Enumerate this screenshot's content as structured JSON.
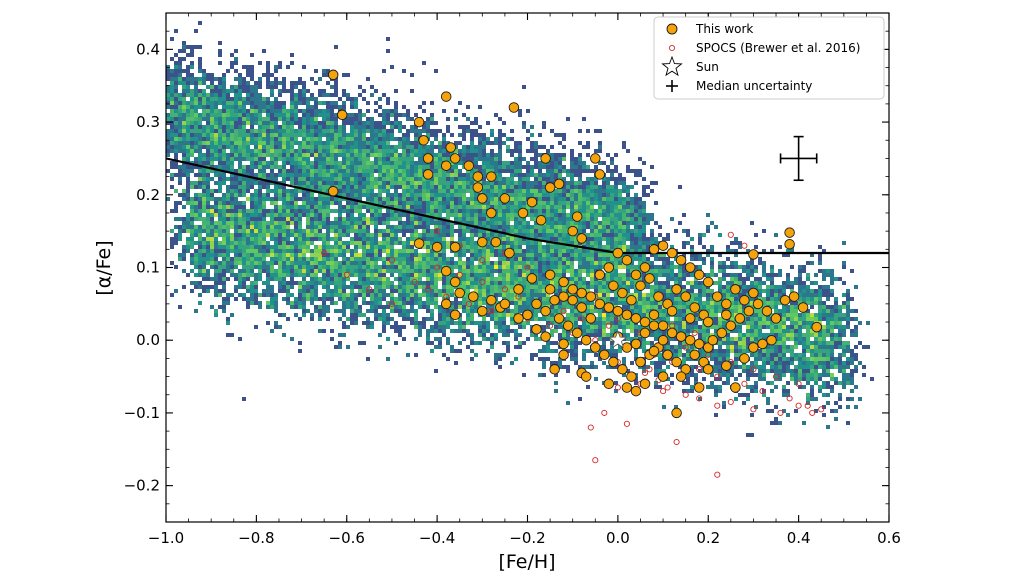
{
  "chart_data": {
    "type": "scatter",
    "xlabel": "[Fe/H]",
    "ylabel": "[α/Fe]",
    "xlim": [
      -1.0,
      0.6
    ],
    "ylim": [
      -0.25,
      0.45
    ],
    "xticks": [
      -1.0,
      -0.8,
      -0.6,
      -0.4,
      -0.2,
      0.0,
      0.2,
      0.4,
      0.6
    ],
    "xtick_labels": [
      "−1.0",
      "−0.8",
      "−0.6",
      "−0.4",
      "−0.2",
      "0.0",
      "0.2",
      "0.4",
      "0.6"
    ],
    "yticks": [
      -0.2,
      -0.1,
      0.0,
      0.1,
      0.2,
      0.3,
      0.4
    ],
    "ytick_labels": [
      "−0.2",
      "−0.1",
      "0.0",
      "0.1",
      "0.2",
      "0.3",
      "0.4"
    ],
    "grid": false,
    "legend_position": "top-right",
    "legend": [
      {
        "label": "This work",
        "marker": "orange-circle"
      },
      {
        "label": "SPOCS (Brewer et al. 2016)",
        "marker": "red-open-circle"
      },
      {
        "label": "Sun",
        "marker": "star"
      },
      {
        "label": "Median uncertainty",
        "marker": "errorbar"
      }
    ],
    "colors": {
      "this_work_fill": "#f5a30a",
      "this_work_edge": "#1a1a1a",
      "spocs_edge": "#d62728",
      "density_low": "#440154",
      "density_mid": "#21918c",
      "density_high": "#fde725"
    },
    "dividing_line": {
      "points": [
        [
          -1.0,
          0.25
        ],
        [
          -0.2,
          0.14
        ],
        [
          0.0,
          0.12
        ],
        [
          0.6,
          0.12
        ]
      ]
    },
    "sun": {
      "x": 0.0,
      "y": 0.0
    },
    "median_uncertainty": {
      "x": 0.4,
      "y": 0.25,
      "xerr": 0.04,
      "yerr": 0.03
    },
    "density_background": {
      "description_shape": "two sequences",
      "high_alpha_sequence": {
        "x_range": [
          -1.0,
          0.05
        ],
        "y_at_xmin": 0.31,
        "y_at_xmax": 0.15
      },
      "low_alpha_sequence": {
        "x_range": [
          -0.95,
          0.5
        ],
        "y_at_xmin": 0.15,
        "y_at_xmax": 0.0
      }
    },
    "series": [
      {
        "name": "This work",
        "points": [
          [
            -0.63,
            0.365
          ],
          [
            -0.61,
            0.31
          ],
          [
            -0.63,
            0.205
          ],
          [
            -0.38,
            0.335
          ],
          [
            -0.23,
            0.32
          ],
          [
            -0.44,
            0.3
          ],
          [
            -0.43,
            0.275
          ],
          [
            -0.42,
            0.25
          ],
          [
            -0.42,
            0.228
          ],
          [
            -0.37,
            0.265
          ],
          [
            -0.36,
            0.25
          ],
          [
            -0.38,
            0.24
          ],
          [
            -0.33,
            0.24
          ],
          [
            -0.31,
            0.225
          ],
          [
            -0.28,
            0.225
          ],
          [
            -0.31,
            0.21
          ],
          [
            -0.3,
            0.195
          ],
          [
            -0.25,
            0.195
          ],
          [
            -0.21,
            0.175
          ],
          [
            -0.28,
            0.175
          ],
          [
            -0.16,
            0.25
          ],
          [
            -0.15,
            0.21
          ],
          [
            -0.13,
            0.215
          ],
          [
            -0.05,
            0.25
          ],
          [
            -0.04,
            0.228
          ],
          [
            -0.19,
            0.19
          ],
          [
            -0.17,
            0.165
          ],
          [
            -0.09,
            0.17
          ],
          [
            -0.1,
            0.15
          ],
          [
            -0.08,
            0.14
          ],
          [
            -0.44,
            0.133
          ],
          [
            -0.4,
            0.128
          ],
          [
            -0.36,
            0.128
          ],
          [
            -0.3,
            0.135
          ],
          [
            -0.27,
            0.135
          ],
          [
            -0.24,
            0.12
          ],
          [
            -0.38,
            0.095
          ],
          [
            -0.36,
            0.08
          ],
          [
            -0.35,
            0.065
          ],
          [
            -0.32,
            0.06
          ],
          [
            -0.38,
            0.05
          ],
          [
            -0.36,
            0.035
          ],
          [
            -0.3,
            0.04
          ],
          [
            -0.28,
            0.055
          ],
          [
            -0.26,
            0.045
          ],
          [
            -0.22,
            0.07
          ],
          [
            -0.19,
            0.085
          ],
          [
            -0.15,
            0.09
          ],
          [
            -0.12,
            0.08
          ],
          [
            -0.1,
            0.07
          ],
          [
            -0.08,
            0.065
          ],
          [
            -0.06,
            0.06
          ],
          [
            -0.04,
            0.05
          ],
          [
            -0.02,
            0.045
          ],
          [
            0.0,
            0.04
          ],
          [
            0.02,
            0.035
          ],
          [
            0.04,
            0.03
          ],
          [
            0.06,
            0.025
          ],
          [
            0.08,
            0.02
          ],
          [
            0.1,
            0.02
          ],
          [
            0.12,
            0.01
          ],
          [
            0.14,
            0.005
          ],
          [
            0.16,
            0.0
          ],
          [
            0.18,
            -0.005
          ],
          [
            0.2,
            -0.01
          ],
          [
            -0.16,
            0.04
          ],
          [
            -0.13,
            0.03
          ],
          [
            -0.11,
            0.02
          ],
          [
            -0.09,
            0.01
          ],
          [
            -0.07,
            0.0
          ],
          [
            -0.05,
            -0.01
          ],
          [
            -0.03,
            -0.02
          ],
          [
            -0.01,
            -0.03
          ],
          [
            0.01,
            -0.04
          ],
          [
            0.03,
            -0.05
          ],
          [
            0.05,
            -0.03
          ],
          [
            0.07,
            -0.02
          ],
          [
            0.09,
            -0.01
          ],
          [
            0.11,
            -0.02
          ],
          [
            0.13,
            -0.03
          ],
          [
            0.15,
            -0.04
          ],
          [
            0.17,
            -0.02
          ],
          [
            0.19,
            -0.03
          ],
          [
            0.21,
            0.0
          ],
          [
            0.23,
            0.01
          ],
          [
            0.25,
            0.02
          ],
          [
            0.27,
            0.03
          ],
          [
            0.29,
            0.04
          ],
          [
            0.31,
            0.05
          ],
          [
            0.33,
            0.04
          ],
          [
            0.35,
            0.03
          ],
          [
            0.37,
            0.055
          ],
          [
            0.39,
            0.06
          ],
          [
            0.41,
            0.045
          ],
          [
            0.44,
            0.018
          ],
          [
            0.22,
            0.06
          ],
          [
            0.24,
            0.05
          ],
          [
            0.26,
            0.07
          ],
          [
            0.28,
            0.055
          ],
          [
            0.3,
            0.065
          ],
          [
            0.2,
            0.08
          ],
          [
            0.18,
            0.09
          ],
          [
            0.16,
            0.1
          ],
          [
            0.14,
            0.11
          ],
          [
            0.12,
            0.12
          ],
          [
            0.1,
            0.13
          ],
          [
            0.08,
            0.125
          ],
          [
            0.06,
            0.1
          ],
          [
            0.04,
            0.09
          ],
          [
            0.02,
            0.11
          ],
          [
            0.0,
            0.12
          ],
          [
            -0.02,
            0.1
          ],
          [
            -0.04,
            0.09
          ],
          [
            0.05,
            0.075
          ],
          [
            0.07,
            0.085
          ],
          [
            0.09,
            0.06
          ],
          [
            0.11,
            0.05
          ],
          [
            0.13,
            0.07
          ],
          [
            0.15,
            0.06
          ],
          [
            0.17,
            0.045
          ],
          [
            0.19,
            0.035
          ],
          [
            -0.01,
            0.075
          ],
          [
            0.01,
            0.065
          ],
          [
            0.03,
            0.055
          ],
          [
            0.0,
            0.005
          ],
          [
            0.02,
            -0.01
          ],
          [
            0.04,
            -0.005
          ],
          [
            0.06,
            0.01
          ],
          [
            0.08,
            -0.015
          ],
          [
            0.1,
            0.0
          ],
          [
            -0.06,
            0.03
          ],
          [
            -0.08,
            0.045
          ],
          [
            -0.1,
            0.055
          ],
          [
            -0.12,
            0.06
          ],
          [
            -0.14,
            0.055
          ],
          [
            -0.18,
            0.05
          ],
          [
            -0.2,
            0.035
          ],
          [
            -0.14,
            -0.04
          ],
          [
            -0.12,
            -0.02
          ],
          [
            -0.08,
            -0.045
          ],
          [
            -0.02,
            -0.06
          ],
          [
            0.02,
            -0.065
          ],
          [
            0.04,
            -0.07
          ],
          [
            0.06,
            -0.06
          ],
          [
            0.1,
            -0.05
          ],
          [
            0.14,
            -0.05
          ],
          [
            0.18,
            -0.065
          ],
          [
            0.2,
            -0.04
          ],
          [
            0.24,
            -0.035
          ],
          [
            0.28,
            -0.025
          ],
          [
            0.3,
            -0.01
          ],
          [
            0.32,
            -0.005
          ],
          [
            0.34,
            0.0
          ],
          [
            0.26,
            -0.065
          ],
          [
            0.13,
            -0.1
          ],
          [
            0.38,
            0.148
          ],
          [
            0.38,
            0.132
          ],
          [
            0.3,
            0.118
          ],
          [
            -0.07,
            -0.05
          ],
          [
            0.08,
            0.035
          ],
          [
            0.12,
            0.04
          ],
          [
            0.16,
            0.03
          ],
          [
            0.2,
            0.025
          ],
          [
            0.24,
            0.035
          ],
          [
            -0.15,
            0.07
          ],
          [
            -0.25,
            0.05
          ],
          [
            -0.22,
            0.03
          ],
          [
            -0.18,
            0.015
          ],
          [
            -0.16,
            0.005
          ],
          [
            -0.12,
            -0.005
          ]
        ]
      },
      {
        "name": "SPOCS (Brewer et al. 2016)",
        "points": [
          [
            -0.45,
            0.08
          ],
          [
            -0.42,
            0.07
          ],
          [
            -0.4,
            0.1
          ],
          [
            -0.38,
            0.06
          ],
          [
            -0.35,
            0.09
          ],
          [
            -0.33,
            0.05
          ],
          [
            -0.3,
            0.08
          ],
          [
            -0.28,
            0.04
          ],
          [
            -0.25,
            0.07
          ],
          [
            -0.22,
            0.06
          ],
          [
            -0.2,
            0.03
          ],
          [
            -0.18,
            0.05
          ],
          [
            -0.15,
            0.02
          ],
          [
            -0.12,
            0.04
          ],
          [
            -0.1,
            0.01
          ],
          [
            -0.08,
            0.03
          ],
          [
            -0.05,
            0.0
          ],
          [
            -0.02,
            0.02
          ],
          [
            0.02,
            -0.01
          ],
          [
            0.05,
            0.01
          ],
          [
            0.08,
            -0.02
          ],
          [
            0.1,
            0.0
          ],
          [
            0.12,
            -0.03
          ],
          [
            0.15,
            -0.01
          ],
          [
            0.18,
            -0.04
          ],
          [
            0.2,
            -0.02
          ],
          [
            0.22,
            -0.05
          ],
          [
            0.25,
            -0.03
          ],
          [
            0.28,
            -0.06
          ],
          [
            0.3,
            -0.04
          ],
          [
            0.32,
            -0.07
          ],
          [
            0.35,
            -0.05
          ],
          [
            0.38,
            -0.08
          ],
          [
            0.4,
            -0.06
          ],
          [
            0.42,
            -0.09
          ],
          [
            0.45,
            -0.095
          ],
          [
            0.43,
            -0.1
          ],
          [
            0.4,
            -0.09
          ],
          [
            0.36,
            -0.1
          ],
          [
            0.3,
            -0.095
          ],
          [
            0.25,
            -0.085
          ],
          [
            0.22,
            -0.09
          ],
          [
            0.18,
            -0.08
          ],
          [
            0.15,
            -0.075
          ],
          [
            0.1,
            -0.07
          ],
          [
            0.05,
            -0.06
          ],
          [
            0.0,
            -0.065
          ],
          [
            -0.03,
            -0.1
          ],
          [
            -0.05,
            -0.165
          ],
          [
            -0.06,
            -0.12
          ],
          [
            0.02,
            -0.115
          ],
          [
            0.13,
            -0.14
          ],
          [
            0.22,
            -0.185
          ],
          [
            0.25,
            0.145
          ],
          [
            0.28,
            0.13
          ],
          [
            -0.5,
            0.11
          ],
          [
            -0.55,
            0.07
          ],
          [
            -0.6,
            0.09
          ],
          [
            -0.65,
            0.12
          ],
          [
            -0.5,
            0.05
          ],
          [
            -0.05,
            0.06
          ],
          [
            0.0,
            0.03
          ],
          [
            0.07,
            -0.04
          ],
          [
            0.12,
            0.02
          ],
          [
            0.17,
            0.01
          ],
          [
            -0.25,
            0.12
          ],
          [
            -0.2,
            0.1
          ],
          [
            -0.3,
            0.11
          ],
          [
            -0.35,
            0.13
          ],
          [
            -0.4,
            0.15
          ],
          [
            0.0,
            -0.03
          ],
          [
            0.03,
            -0.05
          ],
          [
            0.06,
            -0.045
          ],
          [
            0.09,
            -0.055
          ],
          [
            0.11,
            -0.065
          ]
        ]
      }
    ]
  }
}
